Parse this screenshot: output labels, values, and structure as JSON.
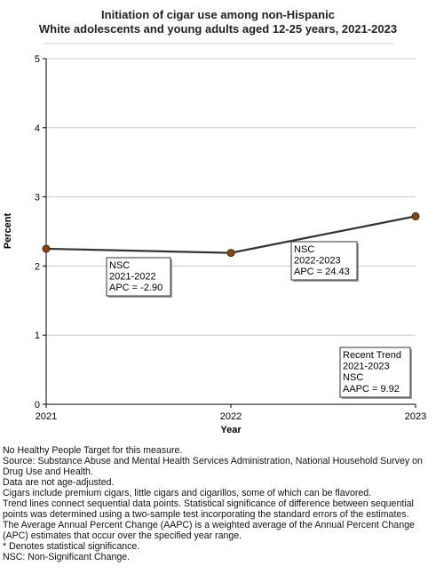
{
  "chart_data": {
    "type": "line",
    "title": [
      "Initiation of cigar use among non-Hispanic",
      "White adolescents and young adults aged 12-25 years, 2021-2023"
    ],
    "xlabel": "Year",
    "ylabel": "Percent",
    "x": [
      "2021",
      "2022",
      "2023"
    ],
    "ylim": [
      0,
      5
    ],
    "yticks": [
      "0",
      "1",
      "2",
      "3",
      "4",
      "5"
    ],
    "grid": true,
    "series": [
      {
        "values": [
          2.25,
          2.19,
          2.72
        ],
        "color": "#8B4513"
      }
    ],
    "annotations": [
      {
        "lines": [
          "NSC",
          "2021-2022",
          "APC = -2.90"
        ]
      },
      {
        "lines": [
          "NSC",
          "2022-2023",
          "APC = 24.43"
        ]
      },
      {
        "lines": [
          "Recent Trend",
          "2021-2023",
          "NSC",
          "AAPC =  9.92"
        ]
      }
    ]
  },
  "footnotes": [
    "No Healthy People Target for this measure.",
    "Source: Substance Abuse and Mental Health Services Administration, National Household Survey on Drug Use and Health.",
    "Data are not age-adjusted.",
    "Cigars include premium cigars, little cigars and cigarillos, some of which can be flavored.",
    "Trend lines connect sequential data points. Statistical significance of difference between sequential points was determined using a two-sample test incorporating the standard errors of the estimates.",
    "The Average Annual Percent Change (AAPC) is a weighted average of the Annual Percent Change (APC) estimates that occur over the specified year range.",
    "* Denotes statistical significance.",
    "NSC: Non-Significant Change."
  ]
}
